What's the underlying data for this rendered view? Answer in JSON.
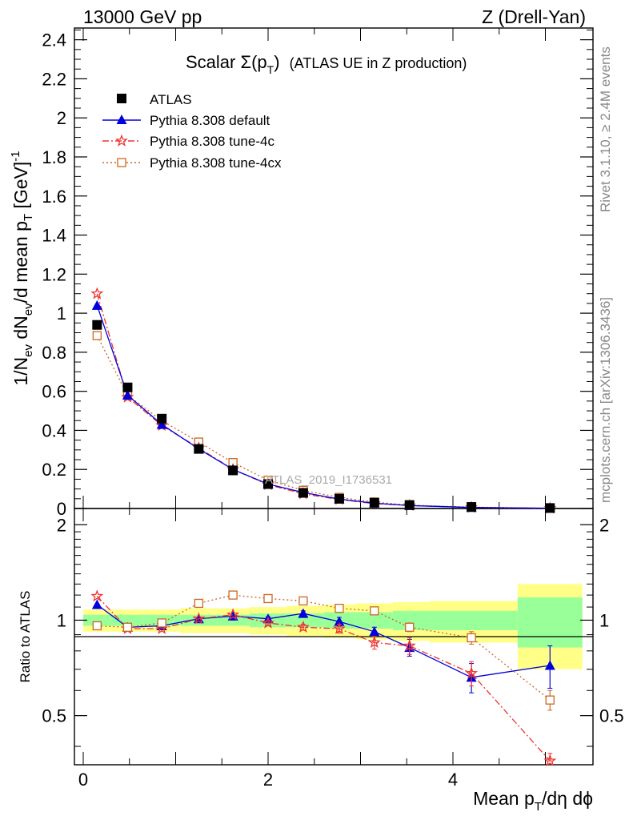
{
  "header": {
    "left": "13000 GeV pp",
    "right": "Z (Drell-Yan)"
  },
  "side_text": {
    "rivet": "Rivet 3.1.10, ≥ 2.4M events",
    "mcplots": "mcplots.cern.ch [arXiv:1306.3436]"
  },
  "watermark": "ATLAS_2019_I1736531",
  "colors": {
    "atlas": "#000000",
    "default": "#0000dd",
    "tune4c": "#ee3333",
    "tune4cx": "#cc6622",
    "band_inner": "#99ff99",
    "band_outer": "#ffff88"
  },
  "chart_data": [
    {
      "type": "line",
      "title": "Scalar Σ(p_T) (ATLAS UE in Z production)",
      "title_main": "Scalar Σ(p",
      "title_sub": "T",
      "title_close": ")",
      "title_rest": "(ATLAS UE in Z production)",
      "xlabel": "Mean p_T/dη dϕ",
      "ylabel": "1/N_ev dN_ev/d mean p_T [GeV]^-1",
      "xlim": [
        -0.2,
        5.5
      ],
      "ylim": [
        0,
        2.46
      ],
      "yticks": [
        0,
        0.2,
        0.4,
        0.6,
        0.8,
        1,
        1.2,
        1.4,
        1.6,
        1.8,
        2,
        2.2,
        2.4
      ],
      "ytick_labels": [
        "0",
        "0.2",
        "0.4",
        "0.6",
        "0.8",
        "1",
        "1.2",
        "1.4",
        "1.6",
        "1.8",
        "2",
        "2.2",
        "2.4"
      ],
      "x": [
        0.15,
        0.48,
        0.85,
        1.25,
        1.62,
        2.0,
        2.38,
        2.77,
        3.15,
        3.53,
        4.2,
        5.05
      ],
      "legend_location": "top-left",
      "series": [
        {
          "name": "ATLAS",
          "marker": "square",
          "values": [
            0.94,
            0.62,
            0.46,
            0.305,
            0.195,
            0.125,
            0.08,
            0.05,
            0.03,
            0.018,
            0.008,
            0.0025
          ]
        },
        {
          "name": "Pythia 8.308 default",
          "marker": "triangle",
          "values": [
            1.04,
            0.58,
            0.43,
            0.305,
            0.2,
            0.125,
            0.082,
            0.048,
            0.027,
            0.015,
            0.0052,
            0.0018
          ]
        },
        {
          "name": "Pythia 8.308 tune-4c",
          "marker": "star",
          "values": [
            1.1,
            0.57,
            0.425,
            0.31,
            0.2,
            0.122,
            0.075,
            0.046,
            0.025,
            0.015,
            0.0054,
            0.0009
          ]
        },
        {
          "name": "Pythia 8.308 tune-4cx",
          "marker": "open-square",
          "values": [
            0.885,
            0.58,
            0.45,
            0.34,
            0.235,
            0.145,
            0.093,
            0.057,
            0.033,
            0.017,
            0.007,
            0.0014
          ]
        }
      ]
    },
    {
      "type": "line",
      "title": "Ratio to ATLAS",
      "ylabel": "Ratio to ATLAS",
      "xlabel": "Mean p_T/dη dϕ",
      "xlim": [
        -0.2,
        5.5
      ],
      "ylim": [
        0.35,
        2.25
      ],
      "log_y": true,
      "yticks": [
        0.5,
        1,
        2
      ],
      "ytick_labels": [
        "0.5",
        "1",
        "2"
      ],
      "xticks": [
        0,
        2,
        4
      ],
      "xtick_labels": [
        "0",
        "2",
        "4"
      ],
      "bins": [
        {
          "lo": 0.0,
          "hi": 0.3,
          "inner": 0.04,
          "outer": 0.08
        },
        {
          "lo": 0.3,
          "hi": 0.65,
          "inner": 0.04,
          "outer": 0.08
        },
        {
          "lo": 0.65,
          "hi": 1.05,
          "inner": 0.04,
          "outer": 0.08
        },
        {
          "lo": 1.05,
          "hi": 1.45,
          "inner": 0.04,
          "outer": 0.09
        },
        {
          "lo": 1.45,
          "hi": 1.8,
          "inner": 0.04,
          "outer": 0.09
        },
        {
          "lo": 1.8,
          "hi": 2.2,
          "inner": 0.05,
          "outer": 0.1
        },
        {
          "lo": 2.2,
          "hi": 2.6,
          "inner": 0.05,
          "outer": 0.11
        },
        {
          "lo": 2.6,
          "hi": 2.95,
          "inner": 0.06,
          "outer": 0.12
        },
        {
          "lo": 2.95,
          "hi": 3.35,
          "inner": 0.06,
          "outer": 0.13
        },
        {
          "lo": 3.35,
          "hi": 3.75,
          "inner": 0.07,
          "outer": 0.14
        },
        {
          "lo": 3.75,
          "hi": 4.7,
          "inner": 0.07,
          "outer": 0.15
        },
        {
          "lo": 4.7,
          "hi": 5.4,
          "inner": 0.18,
          "outer": 0.3
        }
      ],
      "x": [
        0.15,
        0.48,
        0.85,
        1.25,
        1.62,
        2.0,
        2.38,
        2.77,
        3.15,
        3.53,
        4.2,
        5.05
      ],
      "series": [
        {
          "name": "Pythia 8.308 default",
          "marker": "triangle",
          "values": [
            1.12,
            0.95,
            0.96,
            1.01,
            1.03,
            1.01,
            1.05,
            0.99,
            0.92,
            0.82,
            0.66,
            0.72
          ],
          "errors": [
            0.01,
            0.01,
            0.01,
            0.01,
            0.01,
            0.015,
            0.02,
            0.03,
            0.03,
            0.05,
            0.07,
            0.11
          ]
        },
        {
          "name": "Pythia 8.308 tune-4c",
          "marker": "star",
          "values": [
            1.19,
            0.94,
            0.94,
            1.01,
            1.04,
            0.98,
            0.95,
            0.94,
            0.85,
            0.83,
            0.68,
            0.36
          ],
          "errors": [
            0.01,
            0.01,
            0.01,
            0.01,
            0.01,
            0.015,
            0.02,
            0.03,
            0.04,
            0.05,
            0.06,
            0.02
          ]
        },
        {
          "name": "Pythia 8.308 tune-4cx",
          "marker": "open-square",
          "values": [
            0.96,
            0.95,
            0.98,
            1.13,
            1.2,
            1.17,
            1.15,
            1.09,
            1.07,
            0.95,
            0.88,
            0.56
          ],
          "errors": [
            0.01,
            0.01,
            0.01,
            0.01,
            0.01,
            0.015,
            0.02,
            0.02,
            0.03,
            0.03,
            0.04,
            0.04
          ]
        }
      ]
    }
  ]
}
